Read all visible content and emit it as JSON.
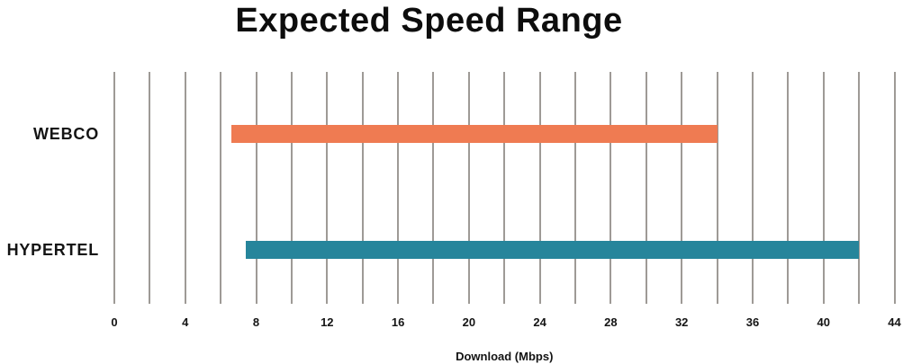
{
  "title": "Expected Speed Range",
  "chart_data": {
    "type": "bar",
    "orientation": "horizontal",
    "title": "Expected Speed Range",
    "xlabel": "Download (Mbps)",
    "xlim": [
      0,
      44
    ],
    "tick_step": 4,
    "grid_step": 2,
    "ticks": [
      0,
      4,
      8,
      12,
      16,
      20,
      24,
      28,
      32,
      36,
      40,
      44
    ],
    "grid": true,
    "legend": "none",
    "categories": [
      "WEBCO",
      "HYPERTEL"
    ],
    "series": [
      {
        "name": "WEBCO",
        "range_mbps": [
          6.6,
          34
        ],
        "color": "#EF7B52"
      },
      {
        "name": "HYPERTEL",
        "range_mbps": [
          7.4,
          42
        ],
        "color": "#26859B"
      }
    ],
    "grid_color": "#9E9A96"
  }
}
